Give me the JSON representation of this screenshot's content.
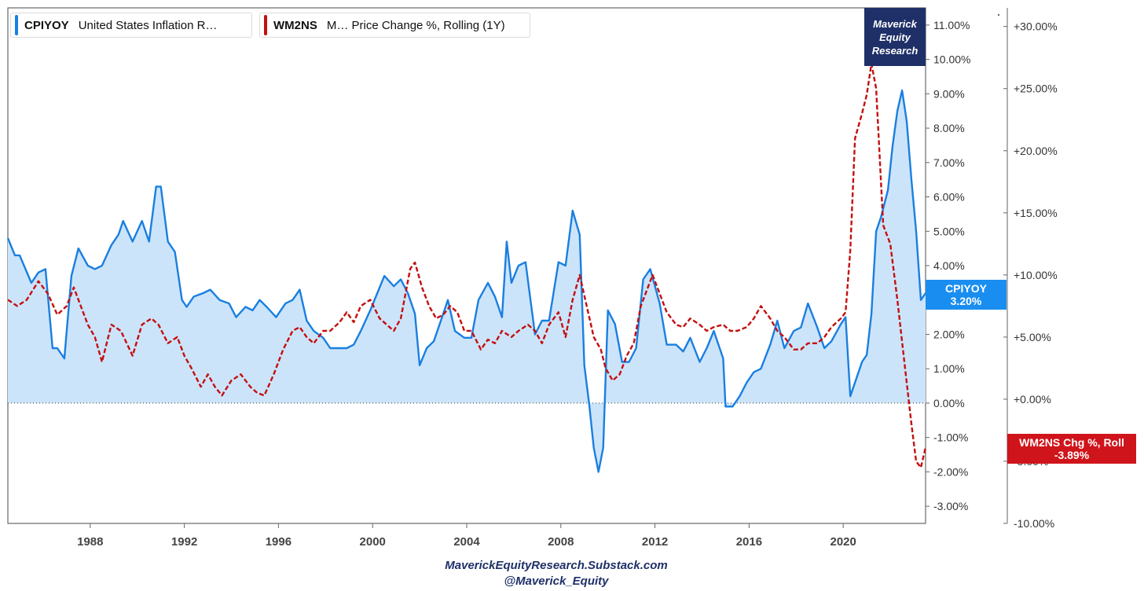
{
  "legend": {
    "cpi_code": "CPIYOY",
    "cpi_desc": "United States Inflation R…",
    "m2_code": "WM2NS",
    "m2_desc": "M… Price Change %, Rolling (1Y)"
  },
  "brand": {
    "line1": "Maverick",
    "line2": "Equity",
    "line3": "Research"
  },
  "footer": {
    "line1": "MaverickEquityResearch.Substack.com",
    "line2": "@Maverick_Equity"
  },
  "tags": {
    "cpi_name": "CPIYOY",
    "cpi_value": "3.20%",
    "m2_name": "WM2NS Chg %, Roll",
    "m2_value": "-3.89%"
  },
  "colors": {
    "cpi": "#1a7fe0",
    "cpi_fill": "#cce4fa",
    "m2": "#c40f0f",
    "brand_bg": "#1f3068"
  },
  "chart_data": {
    "type": "line",
    "x_ticks": [
      "1988",
      "1992",
      "1996",
      "2000",
      "2004",
      "2008",
      "2012",
      "2016",
      "2020"
    ],
    "x_range": [
      1984.5,
      2023.5
    ],
    "y_left": {
      "ylim": [
        -3.5,
        11.5
      ],
      "ticks": [
        "11.00%",
        "10.00%",
        "9.00%",
        "8.00%",
        "7.00%",
        "6.00%",
        "5.00%",
        "4.00%",
        "3.00%",
        "2.00%",
        "1.00%",
        "0.00%",
        "-1.00%",
        "-2.00%",
        "-3.00%"
      ]
    },
    "y_right": {
      "ylim": [
        -10.0,
        31.5
      ],
      "ticks": [
        "+30.00%",
        "+25.00%",
        "+20.00%",
        "+15.00%",
        "+10.00%",
        "+5.00%",
        "+0.00%",
        "-5.00%",
        "-10.00%"
      ]
    },
    "series": [
      {
        "name": "CPIYOY",
        "axis": "left",
        "style": "solid",
        "x": [
          1984.5,
          1984.8,
          1985.0,
          1985.5,
          1985.8,
          1986.1,
          1986.4,
          1986.6,
          1986.9,
          1987.2,
          1987.5,
          1987.9,
          1988.2,
          1988.5,
          1988.9,
          1989.2,
          1989.4,
          1989.8,
          1990.2,
          1990.5,
          1990.8,
          1991.0,
          1991.3,
          1991.6,
          1991.9,
          1992.1,
          1992.4,
          1992.8,
          1993.1,
          1993.5,
          1993.9,
          1994.2,
          1994.6,
          1994.9,
          1995.2,
          1995.5,
          1995.9,
          1996.3,
          1996.6,
          1996.9,
          1997.2,
          1997.5,
          1997.9,
          1998.2,
          1998.5,
          1998.9,
          1999.2,
          1999.5,
          1999.9,
          2000.2,
          2000.5,
          2000.9,
          2001.2,
          2001.5,
          2001.8,
          2002.0,
          2002.3,
          2002.6,
          2002.9,
          2003.2,
          2003.5,
          2003.9,
          2004.2,
          2004.5,
          2004.9,
          2005.2,
          2005.5,
          2005.7,
          2005.9,
          2006.2,
          2006.5,
          2006.9,
          2007.2,
          2007.5,
          2007.9,
          2008.2,
          2008.5,
          2008.8,
          2009.0,
          2009.2,
          2009.4,
          2009.6,
          2009.8,
          2010.0,
          2010.3,
          2010.6,
          2010.9,
          2011.2,
          2011.5,
          2011.8,
          2012.2,
          2012.5,
          2012.9,
          2013.2,
          2013.5,
          2013.9,
          2014.2,
          2014.5,
          2014.9,
          2015.0,
          2015.3,
          2015.6,
          2015.9,
          2016.2,
          2016.5,
          2016.9,
          2017.2,
          2017.5,
          2017.9,
          2018.2,
          2018.5,
          2018.9,
          2019.2,
          2019.5,
          2019.9,
          2020.1,
          2020.3,
          2020.5,
          2020.8,
          2021.0,
          2021.2,
          2021.4,
          2021.6,
          2021.9,
          2022.1,
          2022.3,
          2022.5,
          2022.7,
          2022.9,
          2023.1,
          2023.3,
          2023.5
        ],
        "y": [
          4.8,
          4.3,
          4.3,
          3.5,
          3.8,
          3.9,
          1.6,
          1.6,
          1.3,
          3.7,
          4.5,
          4.0,
          3.9,
          4.0,
          4.6,
          4.9,
          5.3,
          4.7,
          5.3,
          4.7,
          6.3,
          6.3,
          4.7,
          4.4,
          3.0,
          2.8,
          3.1,
          3.2,
          3.3,
          3.0,
          2.9,
          2.5,
          2.8,
          2.7,
          3.0,
          2.8,
          2.5,
          2.9,
          3.0,
          3.3,
          2.4,
          2.1,
          1.9,
          1.6,
          1.6,
          1.6,
          1.7,
          2.1,
          2.7,
          3.2,
          3.7,
          3.4,
          3.6,
          3.2,
          2.6,
          1.1,
          1.6,
          1.8,
          2.4,
          3.0,
          2.1,
          1.9,
          1.9,
          3.0,
          3.5,
          3.1,
          2.5,
          4.7,
          3.5,
          4.0,
          4.1,
          2.0,
          2.4,
          2.4,
          4.1,
          4.0,
          5.6,
          4.9,
          1.1,
          0.0,
          -1.3,
          -2.0,
          -1.3,
          2.7,
          2.3,
          1.2,
          1.2,
          1.6,
          3.6,
          3.9,
          2.9,
          1.7,
          1.7,
          1.5,
          1.9,
          1.2,
          1.6,
          2.1,
          1.3,
          -0.1,
          -0.1,
          0.2,
          0.6,
          0.9,
          1.0,
          1.7,
          2.4,
          1.6,
          2.1,
          2.2,
          2.9,
          2.2,
          1.6,
          1.8,
          2.3,
          2.5,
          0.2,
          0.6,
          1.2,
          1.4,
          2.6,
          5.0,
          5.4,
          6.2,
          7.5,
          8.5,
          9.1,
          8.2,
          6.5,
          5.0,
          3.0,
          3.2
        ]
      },
      {
        "name": "WM2NS",
        "axis": "right",
        "style": "dashed",
        "x": [
          1984.5,
          1984.9,
          1985.3,
          1985.8,
          1986.2,
          1986.6,
          1987.0,
          1987.3,
          1987.6,
          1987.9,
          1988.2,
          1988.5,
          1988.9,
          1989.3,
          1989.8,
          1990.2,
          1990.6,
          1990.9,
          1991.3,
          1991.7,
          1992.0,
          1992.3,
          1992.7,
          1993.0,
          1993.3,
          1993.6,
          1994.0,
          1994.4,
          1994.8,
          1995.1,
          1995.4,
          1995.8,
          1996.2,
          1996.6,
          1996.9,
          1997.2,
          1997.5,
          1997.9,
          1998.2,
          1998.6,
          1998.9,
          1999.2,
          1999.5,
          1999.9,
          2000.3,
          2000.6,
          2000.9,
          2001.2,
          2001.6,
          2001.8,
          2002.1,
          2002.4,
          2002.7,
          2003.0,
          2003.3,
          2003.6,
          2003.9,
          2004.2,
          2004.6,
          2004.9,
          2005.2,
          2005.5,
          2005.9,
          2006.2,
          2006.6,
          2006.9,
          2007.2,
          2007.5,
          2007.9,
          2008.2,
          2008.5,
          2008.8,
          2009.1,
          2009.4,
          2009.7,
          2009.9,
          2010.2,
          2010.5,
          2010.8,
          2011.1,
          2011.4,
          2011.7,
          2011.9,
          2012.2,
          2012.5,
          2012.9,
          2013.2,
          2013.5,
          2013.9,
          2014.2,
          2014.5,
          2014.9,
          2015.2,
          2015.5,
          2015.9,
          2016.2,
          2016.5,
          2016.9,
          2017.2,
          2017.5,
          2017.9,
          2018.2,
          2018.5,
          2018.9,
          2019.2,
          2019.5,
          2019.9,
          2020.1,
          2020.3,
          2020.5,
          2020.8,
          2021.0,
          2021.2,
          2021.4,
          2021.7,
          2022.0,
          2022.3,
          2022.6,
          2022.9,
          2023.1,
          2023.3,
          2023.5
        ],
        "y": [
          8.0,
          7.5,
          8.0,
          9.5,
          8.5,
          6.8,
          7.5,
          9.0,
          7.5,
          6.0,
          5.0,
          3.0,
          6.0,
          5.5,
          3.5,
          6.0,
          6.5,
          6.0,
          4.5,
          5.0,
          3.5,
          2.5,
          1.0,
          2.0,
          1.0,
          0.3,
          1.5,
          2.0,
          1.0,
          0.5,
          0.3,
          2.0,
          4.0,
          5.5,
          5.8,
          5.0,
          4.5,
          5.5,
          5.5,
          6.2,
          7.0,
          6.2,
          7.5,
          8.0,
          6.5,
          6.0,
          5.5,
          6.5,
          10.5,
          11.0,
          9.0,
          7.5,
          6.5,
          6.8,
          7.5,
          7.0,
          5.5,
          5.5,
          4.0,
          4.8,
          4.5,
          5.5,
          5.0,
          5.5,
          6.0,
          5.5,
          4.5,
          6.0,
          7.0,
          5.0,
          8.0,
          10.0,
          7.5,
          5.0,
          4.0,
          2.5,
          1.5,
          2.0,
          3.5,
          4.5,
          7.5,
          9.0,
          10.0,
          8.5,
          7.0,
          6.0,
          5.8,
          6.5,
          6.0,
          5.5,
          5.8,
          6.0,
          5.5,
          5.5,
          5.8,
          6.5,
          7.5,
          6.5,
          5.5,
          5.0,
          4.0,
          4.0,
          4.5,
          4.5,
          5.0,
          5.8,
          6.5,
          7.0,
          12.0,
          21.0,
          23.0,
          24.5,
          27.0,
          25.0,
          14.0,
          12.5,
          8.0,
          3.0,
          -2.0,
          -5.0,
          -5.5,
          -3.89
        ]
      }
    ],
    "baseline": 0.0
  }
}
